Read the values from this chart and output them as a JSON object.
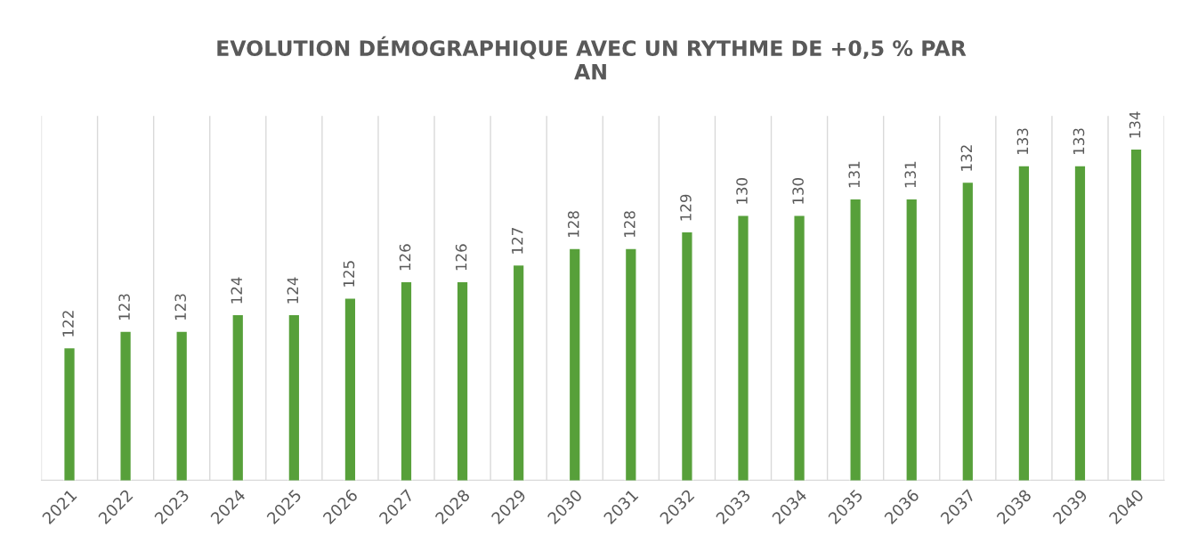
{
  "chart_data": {
    "type": "bar",
    "title": "EVOLUTION DÉMOGRAPHIQUE AVEC UN RYTHME DE +0,5 % PAR AN",
    "categories": [
      "2021",
      "2022",
      "2023",
      "2024",
      "2025",
      "2026",
      "2027",
      "2028",
      "2029",
      "2030",
      "2031",
      "2032",
      "2033",
      "2034",
      "2035",
      "2036",
      "2037",
      "2038",
      "2039",
      "2040"
    ],
    "values": [
      122,
      123,
      123,
      124,
      124,
      125,
      126,
      126,
      127,
      128,
      128,
      129,
      130,
      130,
      131,
      131,
      132,
      133,
      133,
      134
    ],
    "color": "#57a03a",
    "data_labels": true,
    "grid": "x",
    "legend": false,
    "tick_labels": "x",
    "ylim": [
      114,
      136
    ]
  }
}
